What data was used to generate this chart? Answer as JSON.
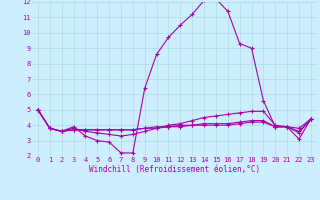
{
  "background_color": "#cceeff",
  "grid_color": "#aadddd",
  "line_color": "#aa00aa",
  "xlabel": "Windchill (Refroidissement éolien,°C)",
  "xlim": [
    -0.5,
    23.5
  ],
  "ylim": [
    2,
    12
  ],
  "yticks": [
    2,
    3,
    4,
    5,
    6,
    7,
    8,
    9,
    10,
    11,
    12
  ],
  "xticks": [
    0,
    1,
    2,
    3,
    4,
    5,
    6,
    7,
    8,
    9,
    10,
    11,
    12,
    13,
    14,
    15,
    16,
    17,
    18,
    19,
    20,
    21,
    22,
    23
  ],
  "series": [
    [
      5.0,
      3.8,
      3.6,
      3.9,
      3.3,
      3.0,
      2.9,
      2.2,
      2.2,
      6.4,
      8.6,
      9.7,
      10.5,
      11.2,
      12.1,
      12.2,
      11.4,
      9.3,
      9.0,
      5.6,
      3.9,
      3.9,
      3.1,
      4.4
    ],
    [
      5.0,
      3.8,
      3.6,
      3.8,
      3.6,
      3.5,
      3.4,
      3.3,
      3.4,
      3.6,
      3.8,
      4.0,
      4.1,
      4.3,
      4.5,
      4.6,
      4.7,
      4.8,
      4.9,
      4.9,
      4.0,
      3.9,
      3.8,
      4.4
    ],
    [
      5.0,
      3.8,
      3.6,
      3.7,
      3.7,
      3.7,
      3.7,
      3.7,
      3.7,
      3.8,
      3.9,
      3.9,
      4.0,
      4.0,
      4.1,
      4.1,
      4.1,
      4.2,
      4.3,
      4.3,
      3.9,
      3.9,
      3.6,
      4.4
    ],
    [
      5.0,
      3.8,
      3.6,
      3.7,
      3.7,
      3.7,
      3.7,
      3.7,
      3.7,
      3.8,
      3.8,
      3.9,
      3.9,
      4.0,
      4.0,
      4.0,
      4.0,
      4.1,
      4.2,
      4.2,
      3.9,
      3.9,
      3.5,
      4.4
    ]
  ],
  "tick_fontsize": 5.0,
  "label_fontsize": 5.5,
  "linewidth": 0.8,
  "markersize": 2.5,
  "markeredgewidth": 0.8
}
